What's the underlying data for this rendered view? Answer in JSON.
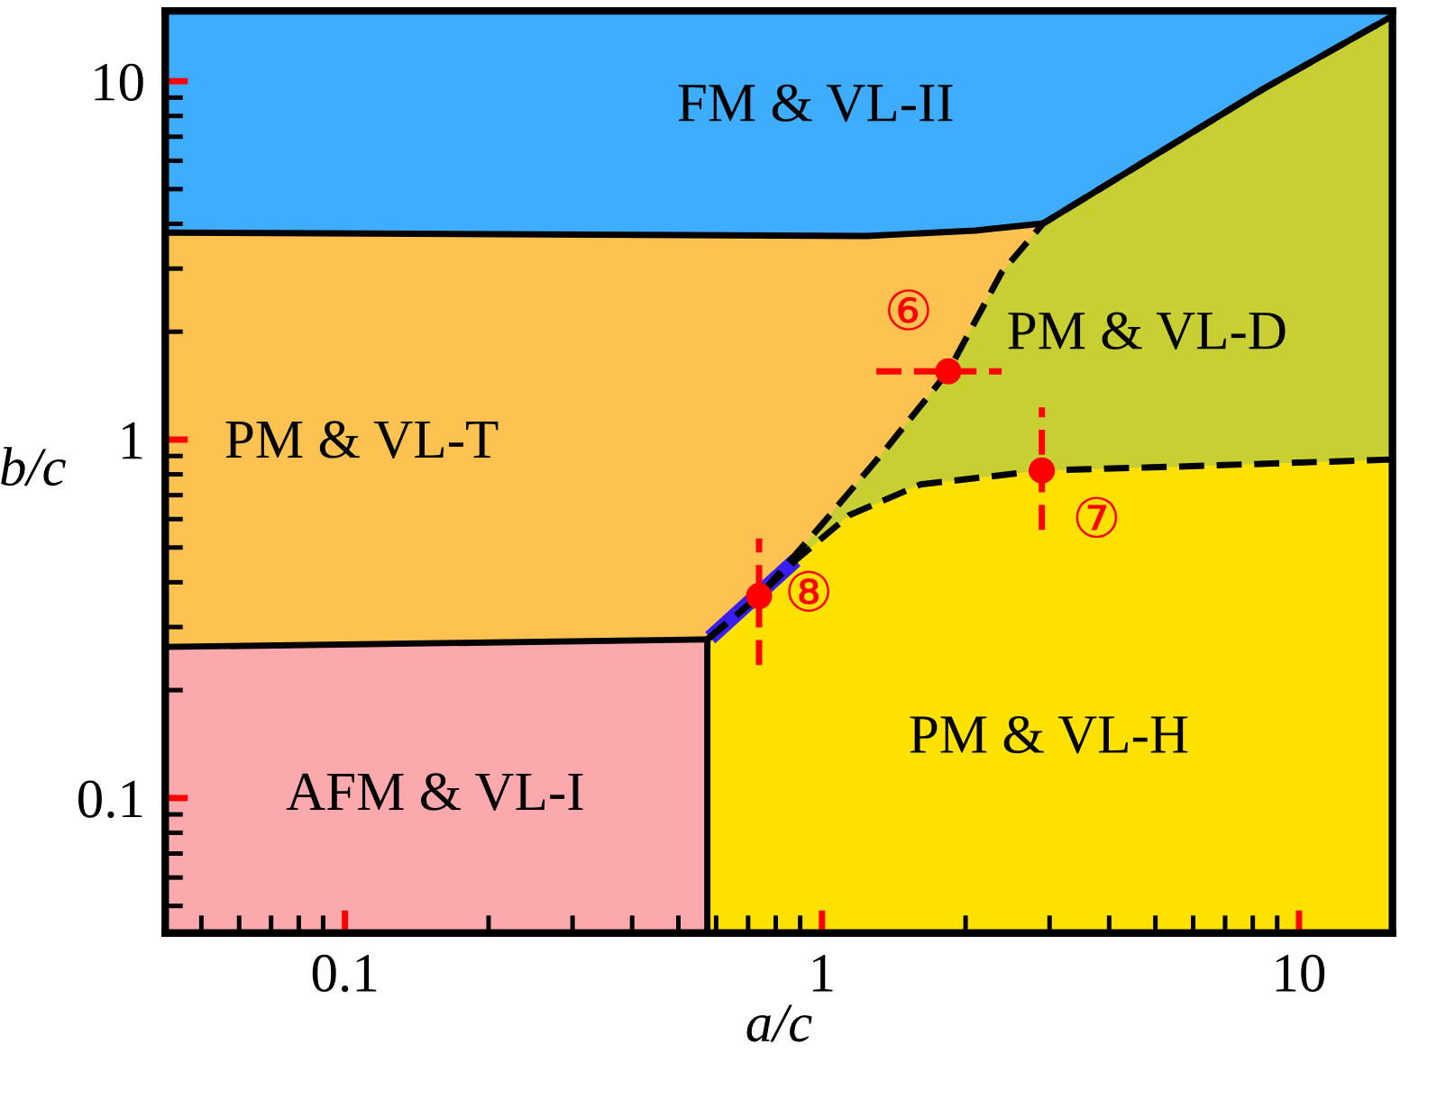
{
  "chart_data": {
    "type": "area",
    "log": "xy",
    "xlabel": "a/c",
    "ylabel": "b/c",
    "xlim": [
      0.042,
      15.7
    ],
    "ylim": [
      0.042,
      15.7
    ],
    "xticks": [
      0.1,
      1,
      10
    ],
    "yticks": [
      0.1,
      1,
      10
    ],
    "grid": false,
    "legend": false,
    "series": [
      {
        "color": "#3fadfd",
        "line_style": "solid",
        "x": [
          0.042,
          15.7
        ],
        "values": [
          15.7,
          15.7
        ]
      },
      {
        "color": "#fdc24f",
        "line_style": "solid",
        "x": [
          0.042,
          1.24,
          2.09,
          2.91,
          4.99,
          8.4,
          15.7
        ],
        "values": [
          3.78,
          3.7,
          3.83,
          4.01,
          6.22,
          9.5,
          15.2
        ]
      },
      {
        "color": "#c8cf32",
        "line_style": "dashed",
        "x": [
          0.575,
          0.738,
          1.0,
          1.36,
          1.84,
          2.38,
          2.91,
          4.99,
          8.4,
          15.7
        ],
        "values": [
          0.277,
          0.366,
          0.58,
          0.94,
          1.55,
          2.93,
          4.01,
          6.22,
          9.5,
          15.2
        ]
      },
      {
        "color": "#ffe100",
        "line_style": "dashed",
        "x": [
          0.575,
          0.738,
          0.88,
          1.14,
          1.61,
          2.89,
          5.44,
          15.7
        ],
        "values": [
          0.277,
          0.366,
          0.46,
          0.615,
          0.75,
          0.82,
          0.84,
          0.88
        ]
      },
      {
        "color": "#fba9ac",
        "line_style": "solid",
        "x": [
          0.042,
          0.575
        ],
        "values": [
          0.264,
          0.277
        ]
      },
      {
        "type": "line",
        "color": "#000000",
        "line_style": "solid",
        "x": [
          0.575,
          0.575
        ],
        "values": [
          0.042,
          0.277
        ]
      },
      {
        "type": "line",
        "color": "#3a1ff5",
        "line_style": "solid",
        "x": [
          0.583,
          0.88
        ],
        "values": [
          0.28,
          0.46
        ]
      },
      {
        "type": "scatter",
        "color": "#ff0000",
        "marker": "circle",
        "line_style": "dashed",
        "x": [
          1.84,
          2.89,
          0.738
        ],
        "values": [
          1.55,
          0.82,
          0.366
        ],
        "xerrors": [
          [
            1.3,
            2.38
          ],
          null,
          null
        ],
        "errors": [
          null,
          [
            0.56,
            1.23
          ],
          [
            0.235,
            0.53
          ]
        ],
        "value_labels": [
          "⑥",
          "⑦",
          "⑧"
        ]
      }
    ],
    "annotations": [
      "FM & VL-II",
      "PM & VL-T",
      "PM & VL-D",
      "PM & VL-H",
      "AFM & VL-I"
    ]
  }
}
